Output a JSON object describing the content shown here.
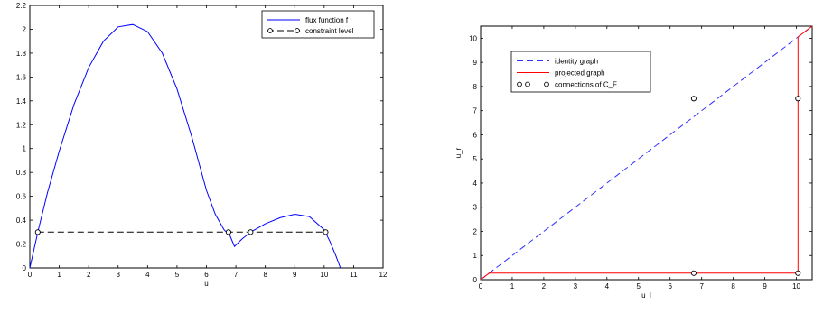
{
  "chart_data": [
    {
      "type": "line",
      "title": "",
      "xlabel": "u",
      "ylabel": "",
      "xlim": [
        0,
        12
      ],
      "ylim": [
        0,
        2.2
      ],
      "xticks": [
        0,
        1,
        2,
        3,
        4,
        5,
        6,
        7,
        8,
        9,
        10,
        11,
        12
      ],
      "yticks": [
        0,
        0.2,
        0.4,
        0.6,
        0.8,
        1,
        1.2,
        1.4,
        1.6,
        1.8,
        2,
        2.2
      ],
      "legend_position": "top-right",
      "series": [
        {
          "name": "flux function f",
          "style": "solid",
          "color": "#0000ff",
          "x": [
            0,
            0.3,
            0.6,
            1.0,
            1.5,
            2.0,
            2.5,
            3.0,
            3.5,
            4.0,
            4.5,
            5.0,
            5.5,
            6.0,
            6.3,
            6.6,
            6.8,
            6.95,
            7.2,
            7.5,
            8.0,
            8.5,
            9.0,
            9.5,
            10.0,
            10.2,
            10.4,
            10.55
          ],
          "y": [
            0,
            0.33,
            0.63,
            0.98,
            1.37,
            1.68,
            1.9,
            2.02,
            2.04,
            1.98,
            1.8,
            1.5,
            1.1,
            0.65,
            0.45,
            0.32,
            0.27,
            0.18,
            0.24,
            0.3,
            0.37,
            0.42,
            0.45,
            0.43,
            0.32,
            0.22,
            0.1,
            0
          ]
        },
        {
          "name": "constraint level",
          "style": "dashed",
          "color": "#000000",
          "markers": "circle",
          "x": [
            0.27,
            6.75,
            7.5,
            10.05
          ],
          "y": [
            0.3,
            0.3,
            0.3,
            0.3
          ]
        }
      ]
    },
    {
      "type": "line",
      "title": "",
      "xlabel": "u_l",
      "ylabel": "u_r",
      "xlim": [
        0,
        10.5
      ],
      "ylim": [
        0,
        10.5
      ],
      "xticks": [
        0,
        1,
        2,
        3,
        4,
        5,
        6,
        7,
        8,
        9,
        10
      ],
      "yticks": [
        0,
        1,
        2,
        3,
        4,
        5,
        6,
        7,
        8,
        9,
        10
      ],
      "legend_position": "top-left",
      "series": [
        {
          "name": "identity graph",
          "style": "dashed",
          "color": "#3333ff",
          "x": [
            0,
            10.5
          ],
          "y": [
            0,
            10.5
          ]
        },
        {
          "name": "projected graph",
          "style": "solid",
          "color": "#ff0000",
          "x": [
            0,
            0.27,
            10.05,
            10.05,
            10.5
          ],
          "y": [
            0,
            0.27,
            0.27,
            10.05,
            10.5
          ]
        },
        {
          "name": "connections of C_F",
          "style": "markers",
          "color": "#000000",
          "markers": "circle",
          "x": [
            6.75,
            10.05,
            6.75,
            10.05
          ],
          "y": [
            7.5,
            7.5,
            0.27,
            0.27
          ]
        }
      ]
    }
  ]
}
